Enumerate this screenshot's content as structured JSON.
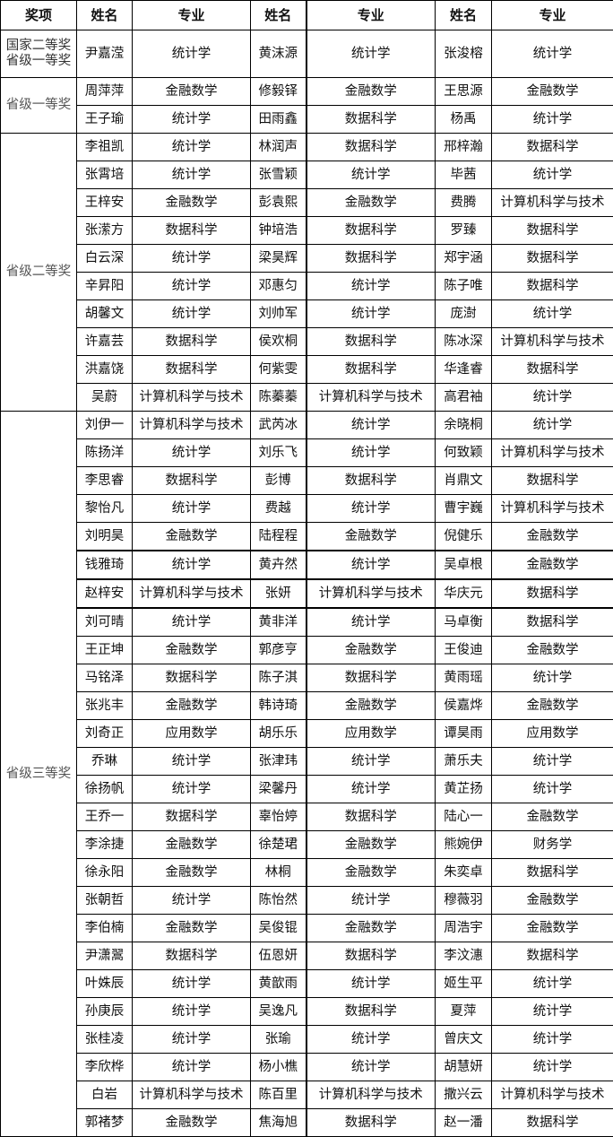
{
  "headers": [
    "奖项",
    "姓名",
    "专业",
    "姓名",
    "专业",
    "姓名",
    "专业"
  ],
  "groups": [
    {
      "award": "国家二等奖\n省级一等奖",
      "rows": [
        [
          "尹嘉滢",
          "统计学",
          "黄沫源",
          "统计学",
          "张浚榕",
          "统计学"
        ]
      ]
    },
    {
      "award": "省级一等奖",
      "rows": [
        [
          "周萍萍",
          "金融数学",
          "修毅铎",
          "金融数学",
          "王思源",
          "金融数学"
        ],
        [
          "王子瑜",
          "统计学",
          "田雨鑫",
          "数据科学",
          "杨禹",
          "统计学"
        ]
      ]
    },
    {
      "award": "省级二等奖",
      "rows": [
        [
          "李祖凯",
          "统计学",
          "林润声",
          "数据科学",
          "邢梓瀚",
          "数据科学"
        ],
        [
          "张霄培",
          "统计学",
          "张雪颖",
          "统计学",
          "毕茜",
          "统计学"
        ],
        [
          "王梓安",
          "金融数学",
          "彭袁熙",
          "金融数学",
          "费腾",
          "计算机科学与技术"
        ],
        [
          "张潆方",
          "数据科学",
          "钟培浩",
          "数据科学",
          "罗臻",
          "数据科学"
        ],
        [
          "白云深",
          "统计学",
          "梁昊辉",
          "数据科学",
          "郑宇涵",
          "数据科学"
        ],
        [
          "辛昇阳",
          "统计学",
          "邓惠匀",
          "统计学",
          "陈子唯",
          "数据科学"
        ],
        [
          "胡馨文",
          "统计学",
          "刘帅军",
          "统计学",
          "庞澍",
          "统计学"
        ],
        [
          "许嘉芸",
          "数据科学",
          "侯欢桐",
          "数据科学",
          "陈冰深",
          "计算机科学与技术"
        ],
        [
          "洪嘉饶",
          "数据科学",
          "何紫雯",
          "数据科学",
          "华逢睿",
          "数据科学"
        ],
        [
          "吴蔚",
          "计算机科学与技术",
          "陈蓁蓁",
          "计算机科学与技术",
          "高君袖",
          "统计学"
        ]
      ]
    },
    {
      "award": "省级三等奖",
      "rows": [
        [
          "刘伊一",
          "计算机科学与技术",
          "武芮冰",
          "统计学",
          "余晓桐",
          "统计学"
        ],
        [
          "陈扬洋",
          "统计学",
          "刘乐飞",
          "统计学",
          "何致颖",
          "计算机科学与技术"
        ],
        [
          "李思睿",
          "数据科学",
          "彭博",
          "数据科学",
          "肖鼎文",
          "数据科学"
        ],
        [
          "黎怡凡",
          "统计学",
          "费越",
          "统计学",
          "曹宇巍",
          "计算机科学与技术"
        ],
        [
          "刘明昊",
          "金融数学",
          "陆程程",
          "金融数学",
          "倪健乐",
          "金融数学"
        ],
        [
          "钱雅琦",
          "统计学",
          "黄卉然",
          "统计学",
          "吴卓根",
          "金融数学"
        ],
        [
          "赵梓安",
          "计算机科学与技术",
          "张妍",
          "计算机科学与技术",
          "华庆元",
          "数据科学"
        ],
        [
          "刘可晴",
          "统计学",
          "黄非洋",
          "统计学",
          "马卓衡",
          "数据科学"
        ],
        [
          "王正坤",
          "金融数学",
          "郭彦亨",
          "金融数学",
          "王俊迪",
          "金融数学"
        ],
        [
          "马铭泽",
          "数据科学",
          "陈子淇",
          "数据科学",
          "黄雨瑶",
          "统计学"
        ],
        [
          "张兆丰",
          "金融数学",
          "韩诗琦",
          "金融数学",
          "侯嘉烨",
          "金融数学"
        ],
        [
          "刘奇正",
          "应用数学",
          "胡乐乐",
          "应用数学",
          "谭昊雨",
          "应用数学"
        ],
        [
          "乔琳",
          "统计学",
          "张津玮",
          "统计学",
          "萧乐夫",
          "统计学"
        ],
        [
          "徐扬帆",
          "统计学",
          "梁馨丹",
          "统计学",
          "黄芷扬",
          "统计学"
        ],
        [
          "王乔一",
          "数据科学",
          "辜怡婷",
          "数据科学",
          "陆心一",
          "金融数学"
        ],
        [
          "李涂捷",
          "金融数学",
          "徐楚珺",
          "金融数学",
          "熊婉伊",
          "财务学"
        ],
        [
          "徐永阳",
          "金融数学",
          "林桐",
          "金融数学",
          "朱奕卓",
          "数据科学"
        ],
        [
          "张朝哲",
          "统计学",
          "陈怡然",
          "统计学",
          "穆薇羽",
          "金融数学"
        ],
        [
          "李伯楠",
          "金融数学",
          "吴俊锟",
          "金融数学",
          "周浩宇",
          "金融数学"
        ],
        [
          "尹潇翯",
          "数据科学",
          "伍恩妍",
          "数据科学",
          "李汶潓",
          "数据科学"
        ],
        [
          "叶姝辰",
          "统计学",
          "黄歆雨",
          "统计学",
          "姬生平",
          "统计学"
        ],
        [
          "孙庚辰",
          "统计学",
          "吴逸凡",
          "数据科学",
          "夏萍",
          "统计学"
        ],
        [
          "张桂凌",
          "统计学",
          "张瑜",
          "统计学",
          "曾庆文",
          "统计学"
        ],
        [
          "李欣桦",
          "统计学",
          "杨小樵",
          "统计学",
          "胡慧妍",
          "统计学"
        ],
        [
          "白岩",
          "计算机科学与技术",
          "陈百里",
          "计算机科学与技术",
          "撒兴云",
          "计算机科学与技术"
        ],
        [
          "郭褚梦",
          "金融数学",
          "焦海旭",
          "数据科学",
          "赵一潘",
          "数据科学"
        ]
      ]
    }
  ]
}
